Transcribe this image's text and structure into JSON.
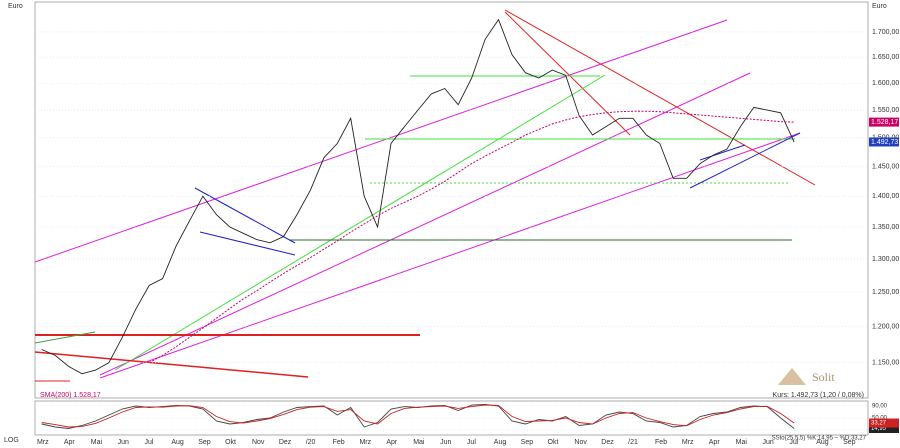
{
  "chart_data": [
    {
      "type": "line",
      "unit_label": "Euro",
      "axis_label": "LOG",
      "log_scale": true,
      "grid": true,
      "categories": [
        "Mrz",
        null,
        "Apr",
        null,
        "Mai",
        null,
        "Jun",
        null,
        "Jul",
        null,
        "Aug",
        null,
        "Sep",
        null,
        "Okt",
        null,
        "Nov",
        null,
        "Dez",
        null,
        "/20",
        null,
        "Feb",
        null,
        "Mrz",
        null,
        "Apr",
        null,
        "Mai",
        null,
        "Jun",
        null,
        "Jul",
        null,
        "Aug",
        null,
        "Sep",
        null,
        "Okt",
        null,
        "Nov",
        null,
        "Dez",
        null,
        "/21",
        null,
        "Feb",
        null,
        "Mrz",
        null,
        "Apr",
        null,
        "Mai",
        null,
        "Jun",
        null,
        "Jul",
        null,
        "Aug",
        null,
        "Sep",
        null
      ],
      "series": [
        {
          "color": "#222222",
          "values": [
            1168,
            1160,
            1145,
            1135,
            1140,
            1150,
            1185,
            1225,
            1260,
            1270,
            1320,
            1360,
            1400,
            1370,
            1350,
            1340,
            1330,
            1325,
            1335,
            1370,
            1410,
            1465,
            1490,
            1535,
            1400,
            1350,
            1490,
            1520,
            1550,
            1580,
            1590,
            1560,
            1610,
            1685,
            1725,
            1655,
            1620,
            1610,
            1625,
            1615,
            1540,
            1505,
            1520,
            1535,
            1535,
            1505,
            1490,
            1430,
            1430,
            1455,
            1470,
            1480,
            1520,
            1555,
            1550,
            1545,
            1492.73,
            null,
            null,
            null,
            null,
            null
          ],
          "last_label": "1.492,73",
          "label_color": "#1f3fbf"
        },
        {
          "name": "SMA(200) 1.528,17",
          "color": "#cc0066",
          "values": [
            null,
            null,
            null,
            null,
            null,
            null,
            null,
            null,
            1150,
            1160,
            1172,
            1185,
            1198,
            1212,
            1226,
            1240,
            1252,
            1265,
            1278,
            1290,
            1302,
            1315,
            1328,
            1342,
            1355,
            1368,
            1380,
            1390,
            1400,
            1412,
            1425,
            1440,
            1455,
            1468,
            1480,
            1492,
            1505,
            1515,
            1525,
            1532,
            1538,
            1542,
            1545,
            1547,
            1548,
            1548,
            1547,
            1545,
            1543,
            1541,
            1539,
            1537,
            1535,
            1533,
            1531,
            1529,
            1528.17,
            null,
            null,
            null,
            null,
            null
          ],
          "last_label": "1.528,17",
          "label_color": "#cc0066"
        }
      ],
      "ylim": [
        1103,
        1755
      ],
      "yticks": [
        {
          "value": 1150,
          "label": "1.150,00"
        },
        {
          "value": 1200,
          "label": "1.200,00"
        },
        {
          "value": 1250,
          "label": "1.250,00"
        },
        {
          "value": 1300,
          "label": "1.300,00"
        },
        {
          "value": 1350,
          "label": "1.350,00"
        },
        {
          "value": 1400,
          "label": "1.400,00"
        },
        {
          "value": 1450,
          "label": "1.450,00"
        },
        {
          "value": 1500,
          "label": "1.500,00"
        },
        {
          "value": 1550,
          "label": "1.550,00"
        },
        {
          "value": 1600,
          "label": "1.600,00"
        },
        {
          "value": 1650,
          "label": "1.650,00"
        },
        {
          "value": 1700,
          "label": "1.700,00"
        }
      ],
      "info": "Kurs: 1.492,73 (1,20 / 0,08%)",
      "brand": "Solit"
    },
    {
      "type": "line",
      "legend_text": "SSto(25,5,5) %K:14,95 – %D:33,27",
      "series": [
        {
          "color": "#444444",
          "values": [
            30,
            20,
            15,
            25,
            40,
            60,
            80,
            90,
            85,
            88,
            92,
            90,
            80,
            40,
            30,
            35,
            45,
            50,
            70,
            85,
            88,
            90,
            60,
            85,
            20,
            35,
            80,
            88,
            85,
            90,
            92,
            75,
            93,
            95,
            90,
            40,
            30,
            45,
            40,
            55,
            25,
            30,
            60,
            70,
            65,
            40,
            35,
            20,
            25,
            55,
            65,
            70,
            85,
            90,
            88,
            50,
            14.95,
            null,
            null,
            null,
            null,
            null
          ],
          "last_label": "14,95",
          "label_color": "#222222"
        },
        {
          "color": "#cc2222",
          "values": [
            35,
            28,
            20,
            22,
            32,
            50,
            70,
            85,
            87,
            86,
            90,
            91,
            85,
            55,
            38,
            33,
            40,
            48,
            62,
            78,
            86,
            88,
            72,
            78,
            40,
            30,
            65,
            82,
            86,
            88,
            90,
            82,
            88,
            93,
            92,
            55,
            38,
            40,
            42,
            50,
            35,
            30,
            50,
            65,
            68,
            50,
            38,
            28,
            24,
            45,
            60,
            68,
            80,
            88,
            89,
            65,
            33.27,
            null,
            null,
            null,
            null,
            null
          ],
          "last_label": "33,27",
          "label_color": "#cc2222"
        }
      ],
      "ylim": [
        0,
        100
      ],
      "yticks": [
        {
          "value": 10,
          "label": "10,00"
        },
        {
          "value": 50,
          "label": "50,00"
        },
        {
          "value": 90,
          "label": "90,00"
        }
      ]
    }
  ]
}
